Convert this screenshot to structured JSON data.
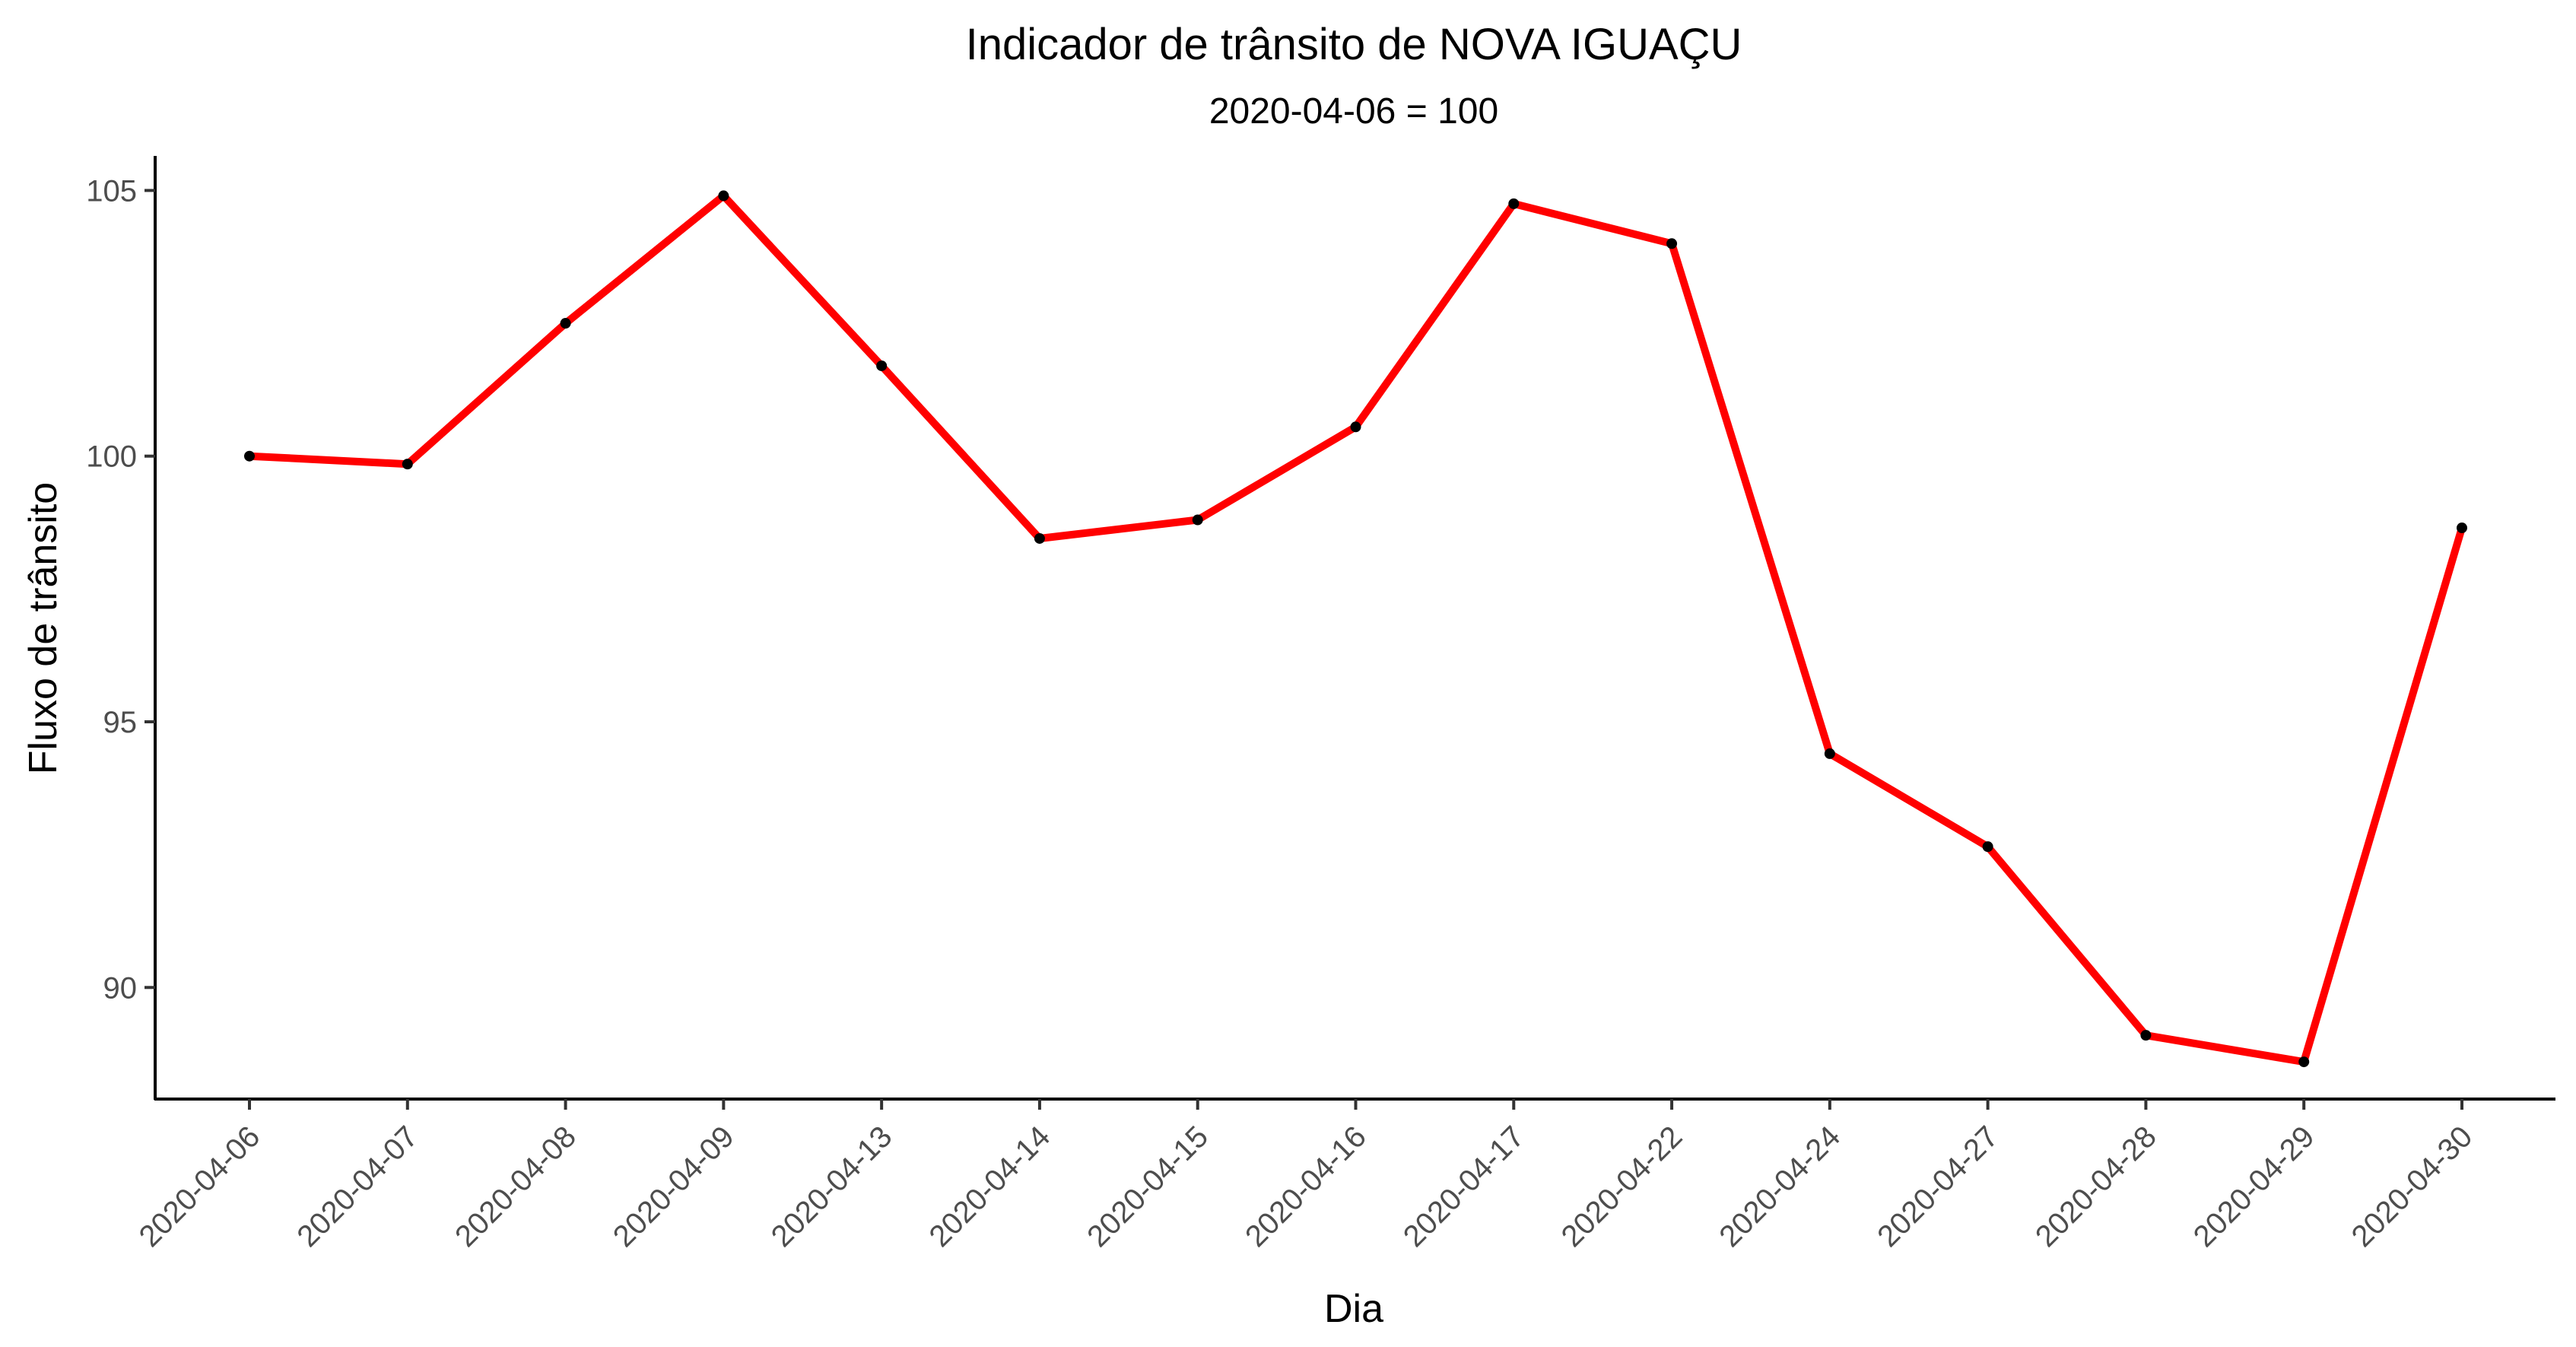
{
  "chart_data": {
    "type": "line",
    "title": "Indicador de trânsito de NOVA IGUAÇU",
    "subtitle": "2020-04-06 = 100",
    "xlabel": "Dia",
    "ylabel": "Fluxo de trânsito",
    "categories": [
      "2020-04-06",
      "2020-04-07",
      "2020-04-08",
      "2020-04-09",
      "2020-04-13",
      "2020-04-14",
      "2020-04-15",
      "2020-04-16",
      "2020-04-17",
      "2020-04-22",
      "2020-04-24",
      "2020-04-27",
      "2020-04-28",
      "2020-04-29",
      "2020-04-30"
    ],
    "series": [
      {
        "values": [
          100.0,
          99.85,
          102.5,
          104.9,
          101.7,
          98.45,
          98.8,
          100.55,
          104.75,
          104.0,
          94.4,
          92.65,
          89.1,
          88.6,
          98.65
        ]
      }
    ],
    "ylim": [
      87.9,
      105.65
    ],
    "yticks": [
      90,
      95,
      100,
      105
    ],
    "grid": false,
    "line_color": "#ff0000",
    "point_color": "#000000"
  }
}
